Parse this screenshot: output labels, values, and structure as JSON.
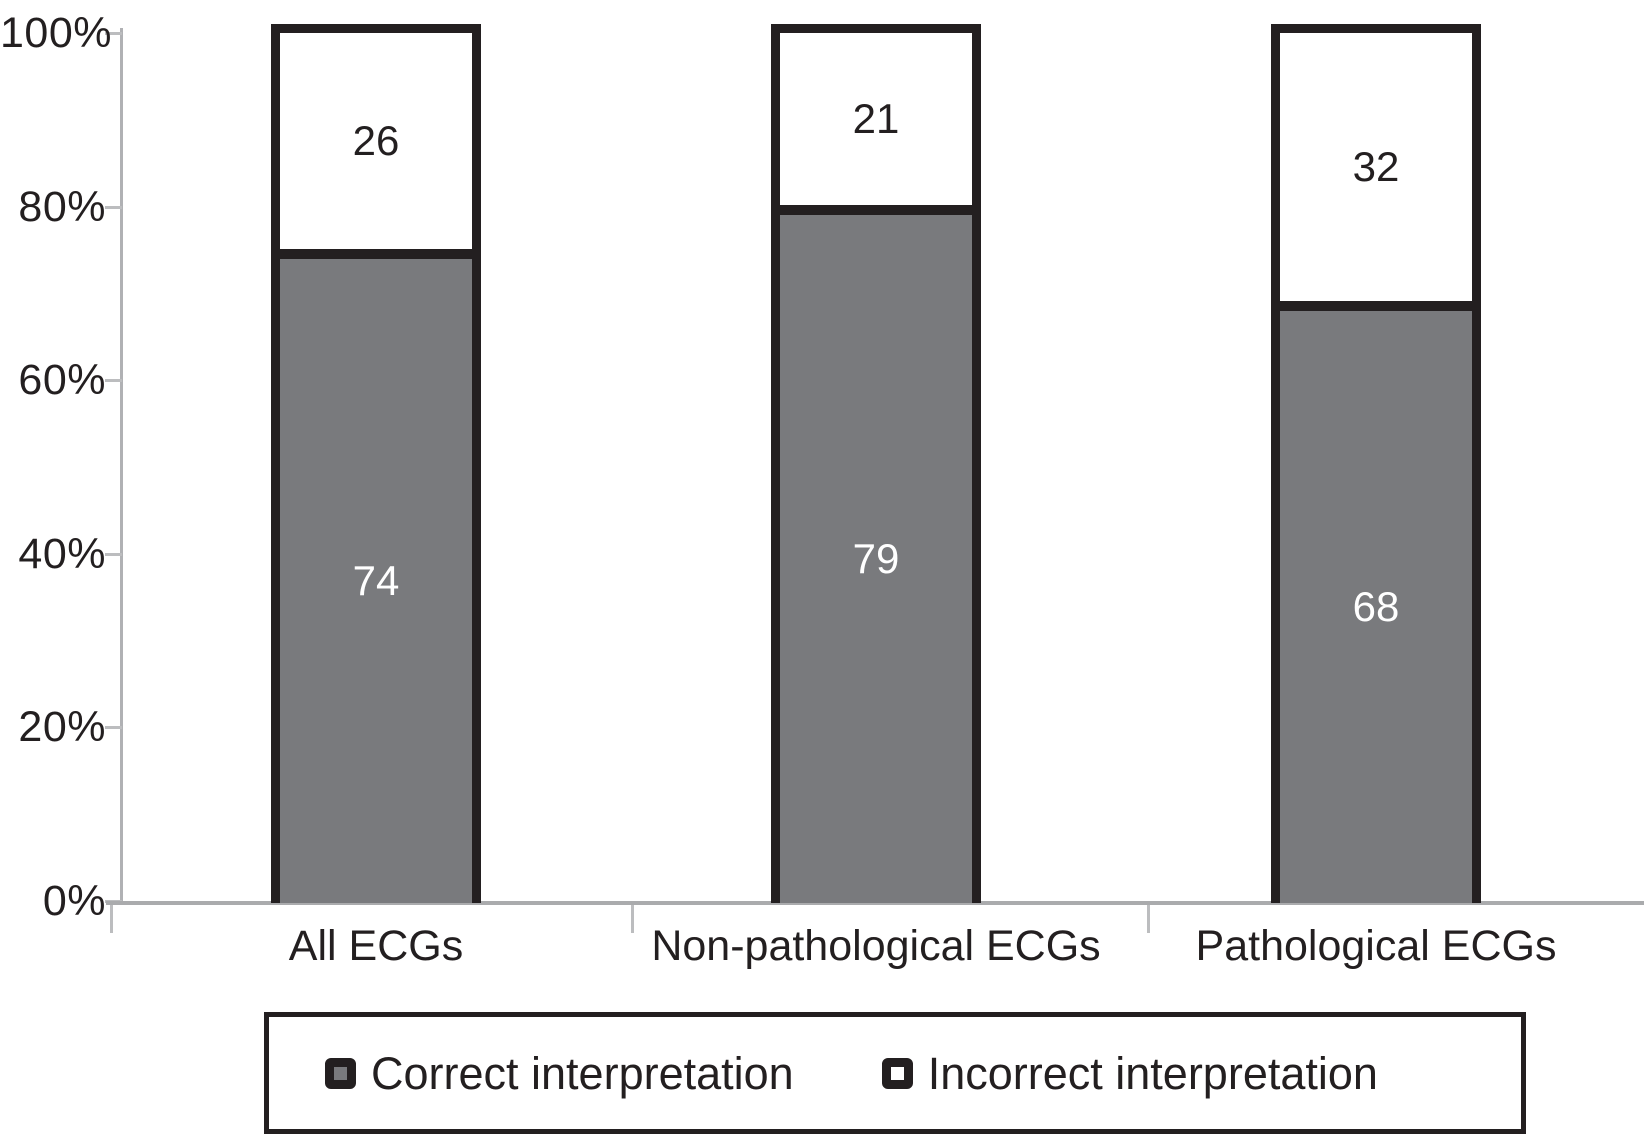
{
  "chart_data": {
    "type": "bar",
    "stacked": true,
    "orientation": "vertical",
    "categories": [
      "All ECGs",
      "Non-pathological ECGs",
      "Pathological ECGs"
    ],
    "series": [
      {
        "name": "Correct interpretation",
        "values": [
          74,
          79,
          68
        ],
        "fill": "#797a7d",
        "value_label_color": "#ffffff"
      },
      {
        "name": "Incorrect interpretation",
        "values": [
          26,
          21,
          32
        ],
        "fill": "#ffffff",
        "value_label_color": "#231f20"
      }
    ],
    "y_ticks": [
      {
        "value": 0,
        "label": "0%"
      },
      {
        "value": 20,
        "label": "20%"
      },
      {
        "value": 40,
        "label": "40%"
      },
      {
        "value": 60,
        "label": "60%"
      },
      {
        "value": 80,
        "label": "80%"
      },
      {
        "value": 100,
        "label": "100%"
      }
    ],
    "ylim": [
      0,
      100
    ],
    "xlabel": "",
    "ylabel": "",
    "title": "",
    "grid": false,
    "bar_value_labels": true,
    "legend_position": "bottom"
  },
  "legend": {
    "items": [
      {
        "label": "Correct interpretation",
        "swatch": "#797a7d"
      },
      {
        "label": "Incorrect interpretation",
        "swatch": "#ffffff"
      }
    ]
  },
  "colors": {
    "bar_border": "#231f20",
    "axis_line": "#b0b1b4",
    "tick": "#bcbdbf",
    "text": "#231f20",
    "background": "#ffffff"
  }
}
